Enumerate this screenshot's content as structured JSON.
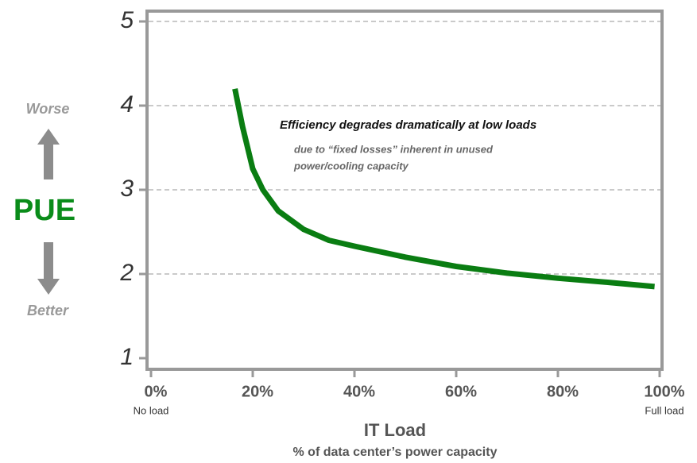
{
  "chart_data": {
    "type": "line",
    "x": [
      16.5,
      18,
      20,
      22,
      25,
      30,
      35,
      40,
      50,
      60,
      70,
      80,
      90,
      99
    ],
    "series": [
      {
        "name": "PUE",
        "color": "#0a7d12",
        "values": [
          4.2,
          3.75,
          3.25,
          3.0,
          2.75,
          2.53,
          2.4,
          2.33,
          2.2,
          2.09,
          2.01,
          1.95,
          1.9,
          1.85
        ]
      }
    ],
    "xlim": [
      0,
      100
    ],
    "xticks": [
      {
        "value": 0,
        "label": "0%"
      },
      {
        "value": 20,
        "label": "20%"
      },
      {
        "value": 40,
        "label": "40%"
      },
      {
        "value": 60,
        "label": "60%"
      },
      {
        "value": 80,
        "label": "80%"
      },
      {
        "value": 100,
        "label": "100%"
      }
    ],
    "ylim": [
      1,
      5
    ],
    "yticks": [
      1,
      2,
      3,
      4,
      5
    ],
    "grid": true,
    "x_label": "IT Load",
    "x_sublabel": "% of data center’s power capacity",
    "x_start_note": "No load",
    "x_end_note": "Full load",
    "y_label": "PUE",
    "y_up_note": "Worse",
    "y_down_note": "Better",
    "annotation_title": "Efficiency degrades dramatically at low loads",
    "annotation_lines": [
      "due to “fixed losses” inherent in unused",
      "power/cooling capacity"
    ]
  }
}
